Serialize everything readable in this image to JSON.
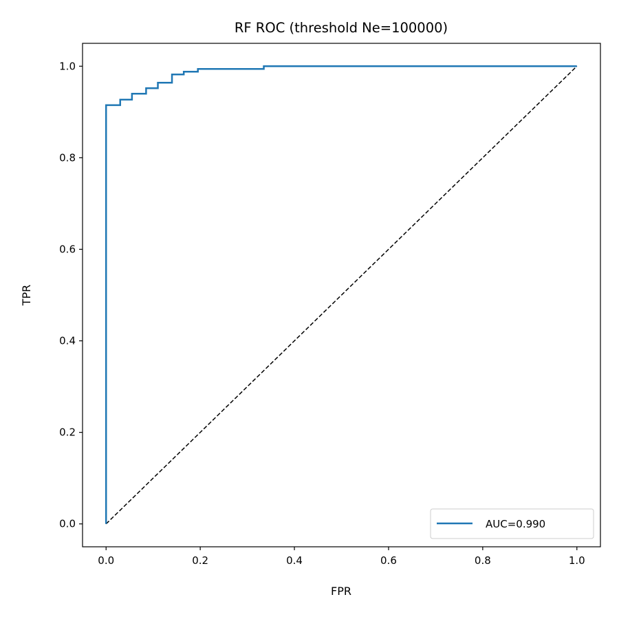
{
  "chart_data": {
    "type": "line",
    "title": "RF ROC (threshold Ne=100000)",
    "xlabel": "FPR",
    "ylabel": "TPR",
    "xlim": [
      -0.05,
      1.05
    ],
    "ylim": [
      -0.05,
      1.05
    ],
    "xticks": [
      0.0,
      0.2,
      0.4,
      0.6,
      0.8,
      1.0
    ],
    "yticks": [
      0.0,
      0.2,
      0.4,
      0.6,
      0.8,
      1.0
    ],
    "xtick_labels": [
      "0.0",
      "0.2",
      "0.4",
      "0.6",
      "0.8",
      "1.0"
    ],
    "ytick_labels": [
      "0.0",
      "0.2",
      "0.4",
      "0.6",
      "0.8",
      "1.0"
    ],
    "grid": false,
    "legend": {
      "position": "lower right"
    },
    "series": [
      {
        "name": "AUC=0.990",
        "color": "#1f77b4",
        "style": "solid",
        "x": [
          0.0,
          0.0,
          0.0,
          0.03,
          0.03,
          0.055,
          0.055,
          0.085,
          0.085,
          0.11,
          0.11,
          0.14,
          0.14,
          0.165,
          0.165,
          0.195,
          0.195,
          0.335,
          0.335,
          1.0
        ],
        "y": [
          0.0,
          0.915,
          0.915,
          0.915,
          0.927,
          0.927,
          0.94,
          0.94,
          0.952,
          0.952,
          0.964,
          0.964,
          0.982,
          0.982,
          0.988,
          0.988,
          0.994,
          0.994,
          1.0,
          1.0
        ]
      },
      {
        "color": "#000000",
        "style": "dashed",
        "x": [
          0.0,
          1.0
        ],
        "y": [
          0.0,
          1.0
        ]
      }
    ]
  }
}
